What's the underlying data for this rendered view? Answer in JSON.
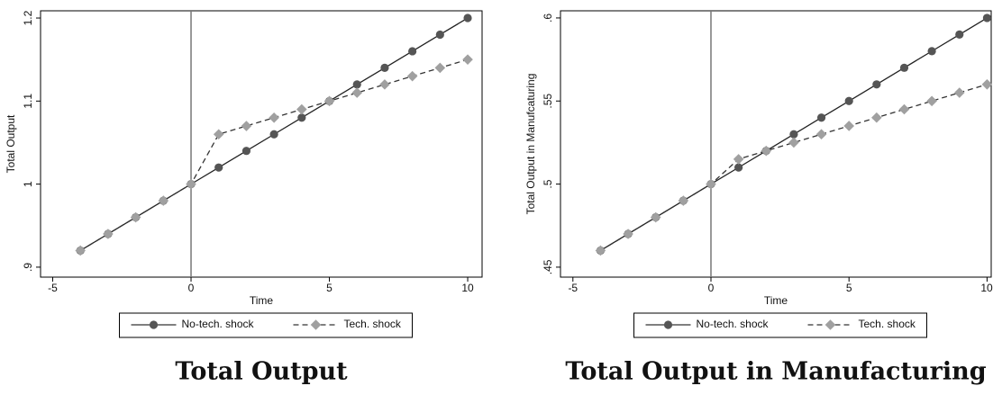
{
  "chart_data": [
    {
      "type": "line",
      "title": "Total Output",
      "xlabel": "Time",
      "ylabel": "Total Output",
      "x": [
        -4,
        -3,
        -2,
        -1,
        0,
        1,
        2,
        3,
        4,
        5,
        6,
        7,
        8,
        9,
        10
      ],
      "series": [
        {
          "name": "No-tech. shock",
          "color": "#555555",
          "marker": "circle",
          "dash": false,
          "values": [
            0.92,
            0.94,
            0.96,
            0.98,
            1.0,
            1.02,
            1.04,
            1.06,
            1.08,
            1.1,
            1.12,
            1.14,
            1.16,
            1.18,
            1.2
          ]
        },
        {
          "name": "Tech. shock",
          "color": "#a0a0a0",
          "marker": "diamond",
          "dash": true,
          "values": [
            0.92,
            0.94,
            0.96,
            0.98,
            1.0,
            1.06,
            1.07,
            1.08,
            1.09,
            1.1,
            1.11,
            1.12,
            1.13,
            1.14,
            1.15
          ]
        }
      ],
      "xlim": [
        -5.44,
        10.52
      ],
      "ylim": [
        0.888,
        1.2087
      ],
      "xticks": [
        -5,
        0,
        5,
        10
      ],
      "yticks": [
        {
          "value": 0.9,
          "label": ".9"
        },
        1,
        1.1,
        1.2
      ],
      "vline": 0,
      "grid": false,
      "legend": "bottom"
    },
    {
      "type": "line",
      "title": "Total Output in Manufacturing",
      "xlabel": "Time",
      "ylabel": "Total Output in Manufcaturing",
      "x": [
        -4,
        -3,
        -2,
        -1,
        0,
        1,
        2,
        3,
        4,
        5,
        6,
        7,
        8,
        9,
        10
      ],
      "series": [
        {
          "name": "No-tech. shock",
          "color": "#555555",
          "marker": "circle",
          "dash": false,
          "values": [
            0.46,
            0.47,
            0.48,
            0.49,
            0.5,
            0.51,
            0.52,
            0.53,
            0.54,
            0.55,
            0.56,
            0.57,
            0.58,
            0.59,
            0.6
          ]
        },
        {
          "name": "Tech. shock",
          "color": "#a0a0a0",
          "marker": "diamond",
          "dash": true,
          "values": [
            0.46,
            0.47,
            0.48,
            0.49,
            0.5,
            0.515,
            0.52,
            0.525,
            0.53,
            0.535,
            0.54,
            0.545,
            0.55,
            0.555,
            0.56
          ]
        }
      ],
      "xlim": [
        -5.45,
        10.15
      ],
      "ylim": [
        0.444,
        0.6043
      ],
      "xticks": [
        -5,
        0,
        5,
        10
      ],
      "yticks": [
        {
          "value": 0.45,
          "label": ".45"
        },
        {
          "value": 0.5,
          "label": ".5"
        },
        {
          "value": 0.55,
          "label": ".55"
        },
        {
          "value": 0.6,
          "label": ".6"
        }
      ],
      "vline": 0,
      "grid": false,
      "legend": "bottom"
    }
  ]
}
